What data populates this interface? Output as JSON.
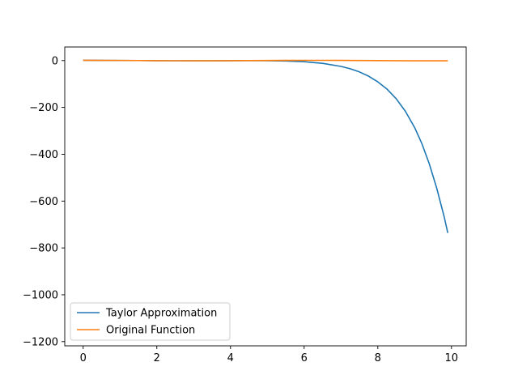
{
  "chart_data": {
    "type": "line",
    "title": "",
    "xlabel": "",
    "ylabel": "",
    "xlim": [
      -0.5,
      10.4
    ],
    "ylim": [
      -1218,
      58
    ],
    "x_ticks": [
      0,
      2,
      4,
      6,
      8,
      10
    ],
    "x_tick_labels": [
      "0",
      "2",
      "4",
      "6",
      "8",
      "10"
    ],
    "y_ticks": [
      0,
      -200,
      -400,
      -600,
      -800,
      -1000,
      -1200
    ],
    "y_tick_labels": [
      "0",
      "−200",
      "−400",
      "−600",
      "−800",
      "−1000",
      "−1200"
    ],
    "grid": false,
    "legend_position": "lower-left",
    "series": [
      {
        "name": "Taylor Approximation",
        "color": "#1f77b4",
        "x": [
          0,
          0.5,
          1,
          1.5,
          2,
          2.5,
          3,
          3.5,
          4,
          4.5,
          5,
          5.5,
          6,
          6.5,
          7,
          7.25,
          7.5,
          7.75,
          8,
          8.25,
          8.5,
          8.75,
          9,
          9.2,
          9.4,
          9.6,
          9.8,
          9.9
        ],
        "y": [
          1,
          0.88,
          0.54,
          0.07,
          -0.42,
          -0.8,
          -0.99,
          -0.94,
          -0.64,
          -0.2,
          -0.5,
          -1.8,
          -5,
          -11.7,
          -25,
          -35,
          -48.5,
          -66.6,
          -91,
          -122,
          -163,
          -217,
          -286,
          -356,
          -442,
          -545,
          -666,
          -736
        ]
      },
      {
        "name": "Original Function",
        "color": "#ff7f0e",
        "x": [
          0,
          0.5,
          1,
          1.5,
          2,
          2.5,
          3,
          3.5,
          4,
          4.5,
          5,
          5.5,
          6,
          6.5,
          7,
          7.5,
          8,
          8.5,
          9,
          9.5,
          9.9
        ],
        "y": [
          1,
          0.88,
          0.54,
          0.07,
          -0.42,
          -0.8,
          -0.99,
          -0.94,
          -0.65,
          -0.21,
          0.28,
          0.71,
          0.96,
          0.98,
          0.75,
          0.35,
          -0.15,
          -0.6,
          -0.91,
          -1,
          -0.89
        ]
      }
    ]
  }
}
